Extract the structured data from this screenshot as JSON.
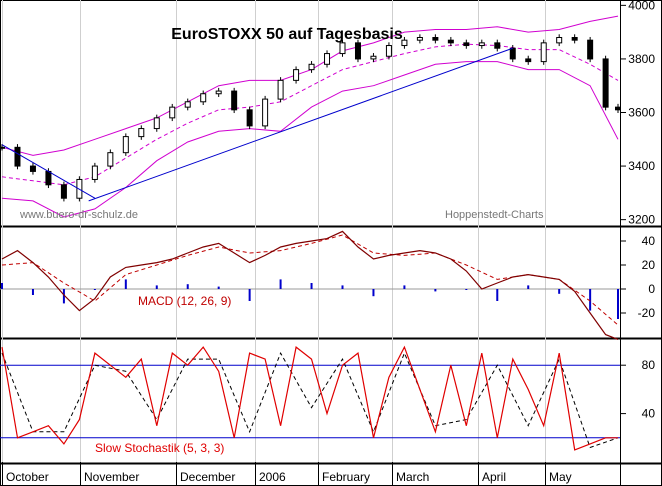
{
  "chart_data": [
    {
      "type": "line",
      "panel": "price",
      "title": "EuroSTOXX 50 auf Tagesbasis",
      "watermark_left": "www.buero-dr-schulz.de",
      "watermark_right": "Hoppenstedt-Charts",
      "y_ticks": [
        "4000",
        "3800",
        "3600",
        "3400",
        "3200"
      ],
      "ylim": [
        3180,
        4020
      ],
      "x_ticks": [
        "October",
        "November",
        "December",
        "2006",
        "February",
        "March",
        "April",
        "May"
      ],
      "series": [
        {
          "key": "close",
          "x": [
            0,
            5,
            10,
            15,
            20,
            25,
            30,
            35,
            40,
            45,
            50,
            55,
            60,
            65,
            70,
            75,
            80,
            85,
            90,
            95,
            100,
            105,
            110,
            115,
            120,
            125,
            130,
            135,
            140,
            145,
            150,
            155,
            160,
            165,
            170,
            175,
            180,
            185,
            190,
            195,
            199
          ],
          "values": [
            3470,
            3400,
            3380,
            3330,
            3280,
            3350,
            3400,
            3450,
            3510,
            3540,
            3580,
            3620,
            3640,
            3670,
            3680,
            3610,
            3550,
            3650,
            3720,
            3760,
            3780,
            3820,
            3860,
            3800,
            3810,
            3850,
            3870,
            3880,
            3870,
            3860,
            3850,
            3860,
            3840,
            3800,
            3790,
            3860,
            3880,
            3870,
            3800,
            3620,
            3610
          ]
        },
        {
          "key": "sma",
          "x": [
            0,
            10,
            20,
            30,
            40,
            50,
            60,
            70,
            80,
            90,
            100,
            110,
            120,
            130,
            140,
            150,
            160,
            170,
            180,
            190,
            199
          ],
          "values": [
            3360,
            3345,
            3330,
            3360,
            3430,
            3500,
            3560,
            3610,
            3620,
            3640,
            3700,
            3760,
            3790,
            3820,
            3845,
            3855,
            3850,
            3835,
            3835,
            3780,
            3720
          ]
        },
        {
          "key": "bollinger_upper",
          "x": [
            0,
            10,
            20,
            30,
            40,
            50,
            60,
            70,
            80,
            90,
            100,
            110,
            120,
            130,
            140,
            150,
            160,
            170,
            180,
            190,
            199
          ],
          "values": [
            3470,
            3440,
            3460,
            3500,
            3540,
            3580,
            3640,
            3700,
            3720,
            3720,
            3760,
            3830,
            3860,
            3900,
            3910,
            3910,
            3920,
            3900,
            3910,
            3940,
            3960
          ]
        },
        {
          "key": "bollinger_lower",
          "x": [
            0,
            10,
            20,
            30,
            40,
            50,
            60,
            70,
            80,
            90,
            100,
            110,
            120,
            130,
            140,
            150,
            160,
            170,
            180,
            190,
            199
          ],
          "values": [
            3280,
            3270,
            3210,
            3240,
            3320,
            3420,
            3490,
            3530,
            3540,
            3530,
            3620,
            3680,
            3700,
            3740,
            3780,
            3790,
            3790,
            3760,
            3760,
            3700,
            3500
          ]
        }
      ],
      "trendlines": [
        {
          "from": [
            0,
            3480
          ],
          "to": [
            30,
            3280
          ]
        },
        {
          "from": [
            28,
            3270
          ],
          "to": [
            165,
            3840
          ]
        }
      ]
    },
    {
      "type": "line",
      "panel": "macd",
      "label": "MACD (12, 26, 9)",
      "y_ticks": [
        "40",
        "20",
        "0",
        "-20"
      ],
      "ylim": [
        -40,
        50
      ],
      "series": [
        {
          "key": "macd",
          "x": [
            0,
            5,
            10,
            15,
            20,
            25,
            30,
            35,
            40,
            45,
            50,
            55,
            60,
            65,
            70,
            75,
            80,
            85,
            90,
            95,
            100,
            105,
            110,
            115,
            120,
            125,
            130,
            135,
            140,
            145,
            150,
            155,
            160,
            165,
            170,
            175,
            180,
            185,
            190,
            195,
            199
          ],
          "values": [
            25,
            32,
            22,
            10,
            -5,
            -18,
            -8,
            10,
            18,
            20,
            22,
            25,
            30,
            35,
            38,
            30,
            22,
            28,
            35,
            38,
            40,
            42,
            48,
            35,
            25,
            28,
            30,
            32,
            30,
            25,
            15,
            0,
            5,
            10,
            12,
            10,
            8,
            -2,
            -20,
            -38,
            -42
          ]
        },
        {
          "key": "signal",
          "x": [
            0,
            10,
            20,
            30,
            40,
            50,
            60,
            70,
            80,
            90,
            100,
            110,
            120,
            130,
            140,
            150,
            160,
            170,
            180,
            190,
            199
          ],
          "values": [
            20,
            22,
            5,
            -10,
            12,
            20,
            28,
            35,
            30,
            32,
            38,
            45,
            30,
            28,
            30,
            20,
            8,
            12,
            8,
            -10,
            -30
          ]
        },
        {
          "key": "histogram",
          "x": [
            0,
            10,
            20,
            30,
            40,
            50,
            60,
            70,
            80,
            90,
            100,
            110,
            120,
            130,
            140,
            150,
            160,
            170,
            180,
            190,
            199
          ],
          "values": [
            5,
            -5,
            -12,
            0,
            8,
            3,
            4,
            2,
            -10,
            8,
            5,
            3,
            -6,
            3,
            -2,
            0,
            -10,
            3,
            -4,
            -18,
            -25
          ]
        }
      ]
    },
    {
      "type": "line",
      "panel": "stochastic",
      "label": "Slow Stochastik (5, 3, 3)",
      "y_ticks": [
        "80",
        "40"
      ],
      "ylim": [
        0,
        100
      ],
      "series": [
        {
          "key": "k",
          "x": [
            0,
            5,
            10,
            15,
            20,
            25,
            30,
            35,
            40,
            45,
            50,
            55,
            60,
            65,
            70,
            75,
            80,
            85,
            90,
            95,
            100,
            105,
            110,
            115,
            120,
            125,
            130,
            135,
            140,
            145,
            150,
            155,
            160,
            165,
            170,
            175,
            180,
            185,
            190,
            195,
            199
          ],
          "values": [
            95,
            20,
            25,
            30,
            15,
            35,
            90,
            80,
            70,
            85,
            30,
            90,
            80,
            95,
            75,
            20,
            90,
            85,
            30,
            95,
            85,
            40,
            80,
            90,
            20,
            70,
            95,
            60,
            25,
            80,
            30,
            90,
            20,
            85,
            60,
            30,
            90,
            10,
            15,
            20,
            20
          ]
        },
        {
          "key": "d",
          "x": [
            0,
            10,
            20,
            30,
            40,
            50,
            60,
            70,
            80,
            90,
            100,
            110,
            120,
            130,
            140,
            150,
            160,
            170,
            180,
            190,
            199
          ],
          "values": [
            90,
            25,
            25,
            80,
            75,
            35,
            85,
            85,
            25,
            90,
            45,
            85,
            25,
            90,
            30,
            35,
            80,
            30,
            85,
            12,
            20
          ]
        }
      ]
    }
  ]
}
